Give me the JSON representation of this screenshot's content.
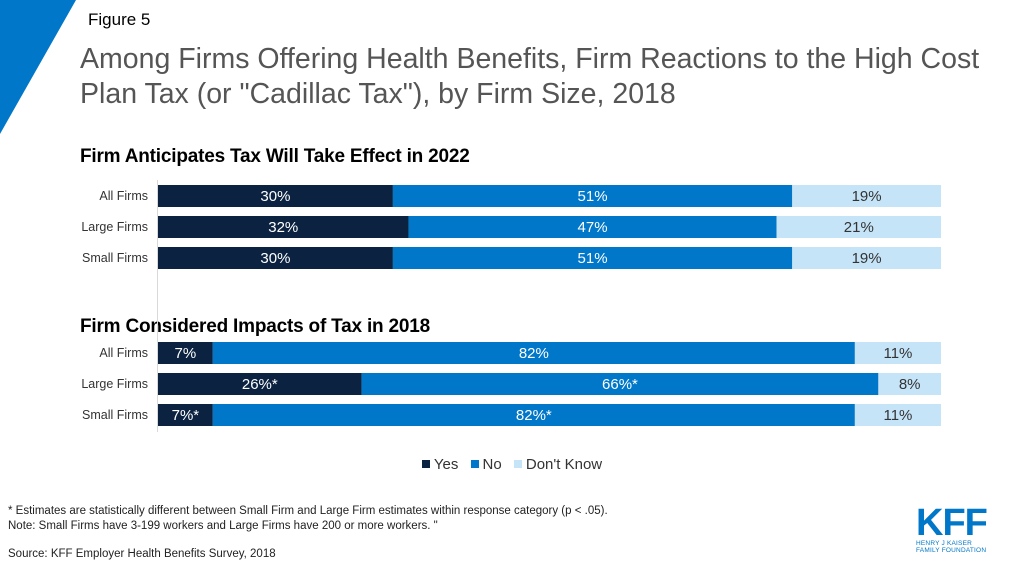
{
  "figure_label": "Figure 5",
  "title": "Among Firms Offering Health Benefits, Firm Reactions to the High Cost Plan Tax (or \"Cadillac Tax\"), by Firm Size, 2018",
  "colors": {
    "yes": "#0b2341",
    "no": "#0077c8",
    "dont_know": "#c6e4f8",
    "accent": "#0077c8"
  },
  "chart_data": [
    {
      "type": "bar",
      "orientation": "horizontal",
      "stacked": true,
      "normalized": true,
      "title": "Firm Anticipates Tax Will Take Effect in 2022",
      "categories": [
        "All Firms",
        "Large Firms",
        "Small Firms"
      ],
      "series": [
        {
          "name": "Yes",
          "values": [
            30,
            32,
            30
          ],
          "labels": [
            "30%",
            "32%",
            "30%"
          ]
        },
        {
          "name": "No",
          "values": [
            51,
            47,
            51
          ],
          "labels": [
            "51%",
            "47%",
            "51%"
          ]
        },
        {
          "name": "Don't Know",
          "values": [
            19,
            21,
            19
          ],
          "labels": [
            "19%",
            "21%",
            "19%"
          ]
        }
      ],
      "xlim": [
        0,
        100
      ]
    },
    {
      "type": "bar",
      "orientation": "horizontal",
      "stacked": true,
      "normalized": true,
      "title": "Firm Considered Impacts of Tax in 2018",
      "categories": [
        "All Firms",
        "Large Firms",
        "Small Firms"
      ],
      "series": [
        {
          "name": "Yes",
          "values": [
            7,
            26,
            7
          ],
          "labels": [
            "7%",
            "26%*",
            "7%*"
          ]
        },
        {
          "name": "No",
          "values": [
            82,
            66,
            82
          ],
          "labels": [
            "82%",
            "66%*",
            "82%*"
          ]
        },
        {
          "name": "Don't Know",
          "values": [
            11,
            8,
            11
          ],
          "labels": [
            "11%",
            "8%",
            "11%"
          ]
        }
      ],
      "xlim": [
        0,
        100
      ]
    }
  ],
  "legend": {
    "items": [
      "Yes",
      "No",
      "Don't Know"
    ],
    "placement": "bottom-center"
  },
  "footnotes": {
    "note1": "* Estimates are statistically different between Small Firm and Large Firm estimates within response category (p < .05).",
    "note2": "Note: Small Firms have 3-199 workers and Large Firms have 200 or more workers. \"",
    "source": "Source: KFF Employer Health Benefits Survey, 2018"
  },
  "logo": {
    "main": "KFF",
    "line1": "HENRY J KAISER",
    "line2": "FAMILY FOUNDATION"
  }
}
